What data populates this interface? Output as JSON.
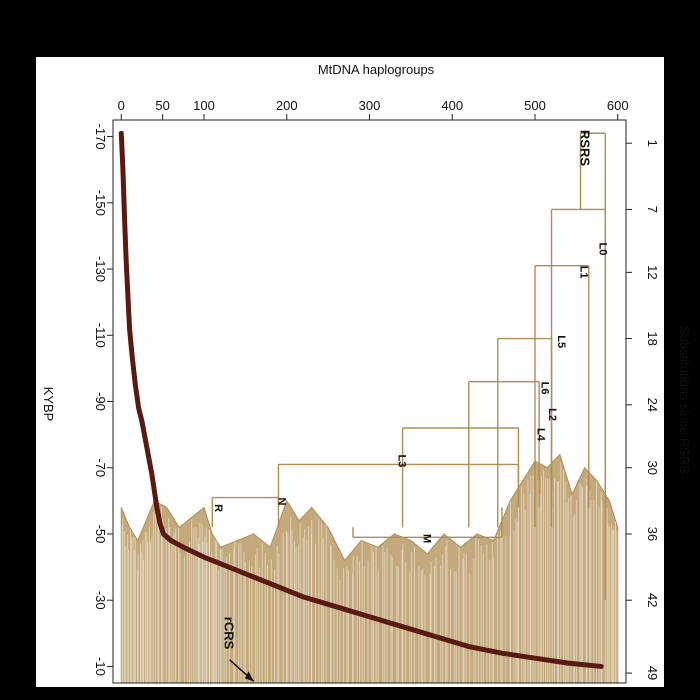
{
  "colors": {
    "background": "#000000",
    "panel": "#ffffff",
    "tree": "#b08d57",
    "tree_fill": "#b99a64",
    "curve": "#5a1a10",
    "text": "#111111"
  },
  "chart_data": {
    "type": "line",
    "title": "MtDNA haplogroups",
    "xlabel": "MtDNA haplogroups",
    "ylabel_left": "KYBP",
    "ylabel_right": "Substitutions since RSRS",
    "x_ticks": [
      "0",
      "50",
      "100",
      "200",
      "300",
      "400",
      "500",
      "600"
    ],
    "x_tick_values": [
      0,
      50,
      100,
      200,
      300,
      400,
      500,
      600
    ],
    "xlim": [
      -10,
      610
    ],
    "ylim_left": [
      -175,
      -5
    ],
    "y_left_ticks": [
      "-170",
      "-150",
      "-130",
      "-110",
      "-90",
      "-70",
      "-50",
      "-30",
      "-10"
    ],
    "y_left_tick_values": [
      -170,
      -150,
      -130,
      -110,
      -90,
      -70,
      -50,
      -30,
      -10
    ],
    "y_right_ticks": [
      "1",
      "7",
      "12",
      "18",
      "24",
      "30",
      "36",
      "42",
      "49"
    ],
    "y_right_tick_values": [
      -168,
      -148,
      -129,
      -109,
      -89,
      -70,
      -50,
      -30,
      -8
    ],
    "grid": false,
    "series": [
      {
        "points": [
          [
            0,
            -171
          ],
          [
            2,
            -160
          ],
          [
            4,
            -145
          ],
          [
            6,
            -132
          ],
          [
            8,
            -122
          ],
          [
            10,
            -112
          ],
          [
            13,
            -104
          ],
          [
            17,
            -95
          ],
          [
            21,
            -88
          ],
          [
            25,
            -84
          ],
          [
            28,
            -80
          ],
          [
            31,
            -76
          ],
          [
            34,
            -72
          ],
          [
            37,
            -68
          ],
          [
            40,
            -63
          ],
          [
            43,
            -58
          ],
          [
            47,
            -53
          ],
          [
            51,
            -50
          ],
          [
            60,
            -48
          ],
          [
            75,
            -46
          ],
          [
            100,
            -43
          ],
          [
            130,
            -40
          ],
          [
            160,
            -37
          ],
          [
            190,
            -34
          ],
          [
            220,
            -31
          ],
          [
            260,
            -28
          ],
          [
            300,
            -25
          ],
          [
            340,
            -22
          ],
          [
            380,
            -19
          ],
          [
            420,
            -16
          ],
          [
            460,
            -14
          ],
          [
            500,
            -12.5
          ],
          [
            540,
            -11
          ],
          [
            580,
            -10
          ]
        ]
      }
    ],
    "annotations": [
      {
        "text": "RSRS",
        "x": 555,
        "y": -172
      },
      {
        "text": "L0",
        "x": 578,
        "y": -138
      },
      {
        "text": "L1",
        "x": 555,
        "y": -131
      },
      {
        "text": "L5",
        "x": 528,
        "y": -110
      },
      {
        "text": "L6",
        "x": 508,
        "y": -96
      },
      {
        "text": "L2",
        "x": 517,
        "y": -88
      },
      {
        "text": "L4",
        "x": 503,
        "y": -82
      },
      {
        "text": "L3",
        "x": 335,
        "y": -74
      },
      {
        "text": "N",
        "x": 190,
        "y": -61
      },
      {
        "text": "R",
        "x": 113,
        "y": -59
      },
      {
        "text": "M",
        "x": 365,
        "y": -50
      },
      {
        "text": "rCRS",
        "x": 125,
        "y": -25
      }
    ],
    "tree_nodes": [
      {
        "x1": 520,
        "x2": 585,
        "y": -148
      },
      {
        "x1": 500,
        "x2": 565,
        "y": -131
      },
      {
        "x1": 455,
        "x2": 520,
        "y": -109
      },
      {
        "x1": 420,
        "x2": 505,
        "y": -96
      },
      {
        "x1": 340,
        "x2": 480,
        "y": -82
      },
      {
        "x1": 190,
        "x2": 480,
        "y": -71
      },
      {
        "x1": 110,
        "x2": 190,
        "y": -61
      },
      {
        "x1": 280,
        "x2": 460,
        "y": -49
      }
    ],
    "dense_region_top": [
      [
        0,
        -58
      ],
      [
        10,
        -52
      ],
      [
        20,
        -48
      ],
      [
        30,
        -54
      ],
      [
        40,
        -60
      ],
      [
        55,
        -58
      ],
      [
        70,
        -52
      ],
      [
        90,
        -56
      ],
      [
        100,
        -58
      ],
      [
        110,
        -50
      ],
      [
        120,
        -46
      ],
      [
        140,
        -48
      ],
      [
        160,
        -50
      ],
      [
        180,
        -46
      ],
      [
        200,
        -60
      ],
      [
        215,
        -54
      ],
      [
        230,
        -58
      ],
      [
        250,
        -52
      ],
      [
        270,
        -42
      ],
      [
        290,
        -48
      ],
      [
        310,
        -46
      ],
      [
        330,
        -50
      ],
      [
        350,
        -48
      ],
      [
        370,
        -44
      ],
      [
        390,
        -50
      ],
      [
        410,
        -46
      ],
      [
        430,
        -50
      ],
      [
        450,
        -48
      ],
      [
        470,
        -60
      ],
      [
        485,
        -66
      ],
      [
        500,
        -72
      ],
      [
        515,
        -70
      ],
      [
        530,
        -74
      ],
      [
        545,
        -62
      ],
      [
        560,
        -70
      ],
      [
        575,
        -66
      ],
      [
        590,
        -60
      ],
      [
        600,
        -52
      ]
    ]
  }
}
